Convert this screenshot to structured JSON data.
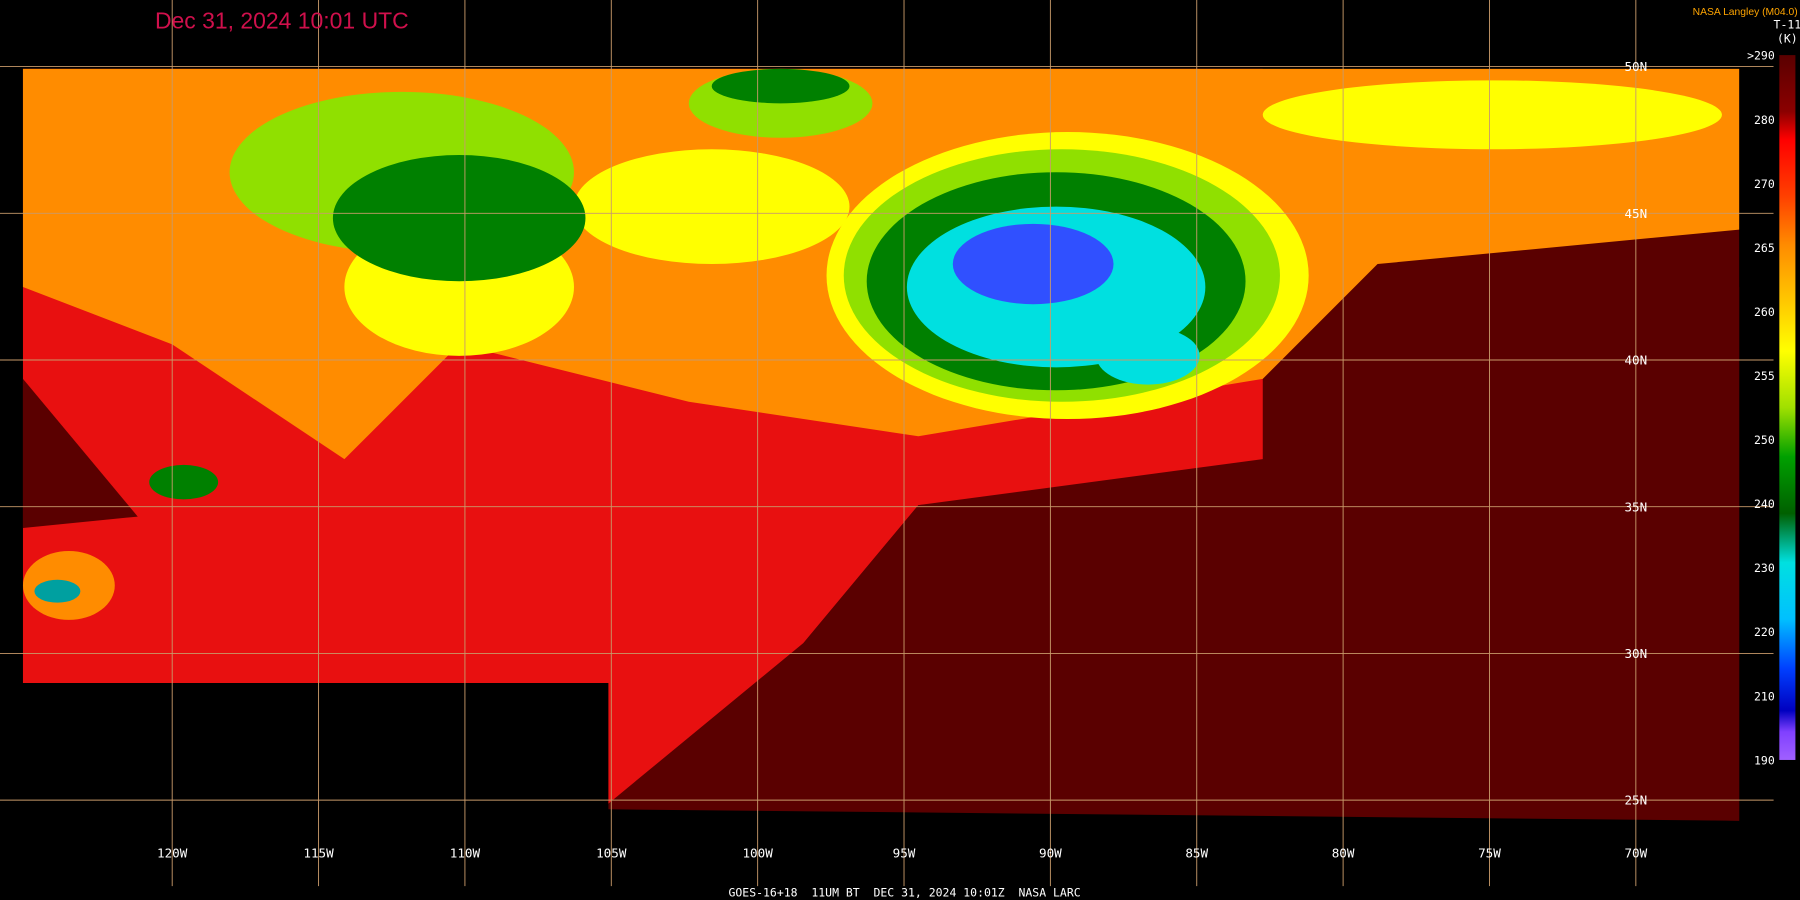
{
  "title": "Dec 31, 2024 10:01 UTC",
  "credit": "NASA Langley (M04.0)",
  "colorbar": {
    "title": "T-11",
    "unit": "(K)",
    "labels": [
      ">290",
      "280",
      "270",
      "265",
      "260",
      "255",
      "250",
      "240",
      "230",
      "220",
      "210",
      "190"
    ]
  },
  "longitude_labels": [
    "120W",
    "115W",
    "110W",
    "105W",
    "100W",
    "95W",
    "90W",
    "85W",
    "80W",
    "75W",
    "70W"
  ],
  "latitude_labels": [
    "50N",
    "45N",
    "40N",
    "35N",
    "30N",
    "25N"
  ],
  "footer": "GOES-16+18  11UM BT  DEC 31, 2024 10:01Z  NASA LARC"
}
